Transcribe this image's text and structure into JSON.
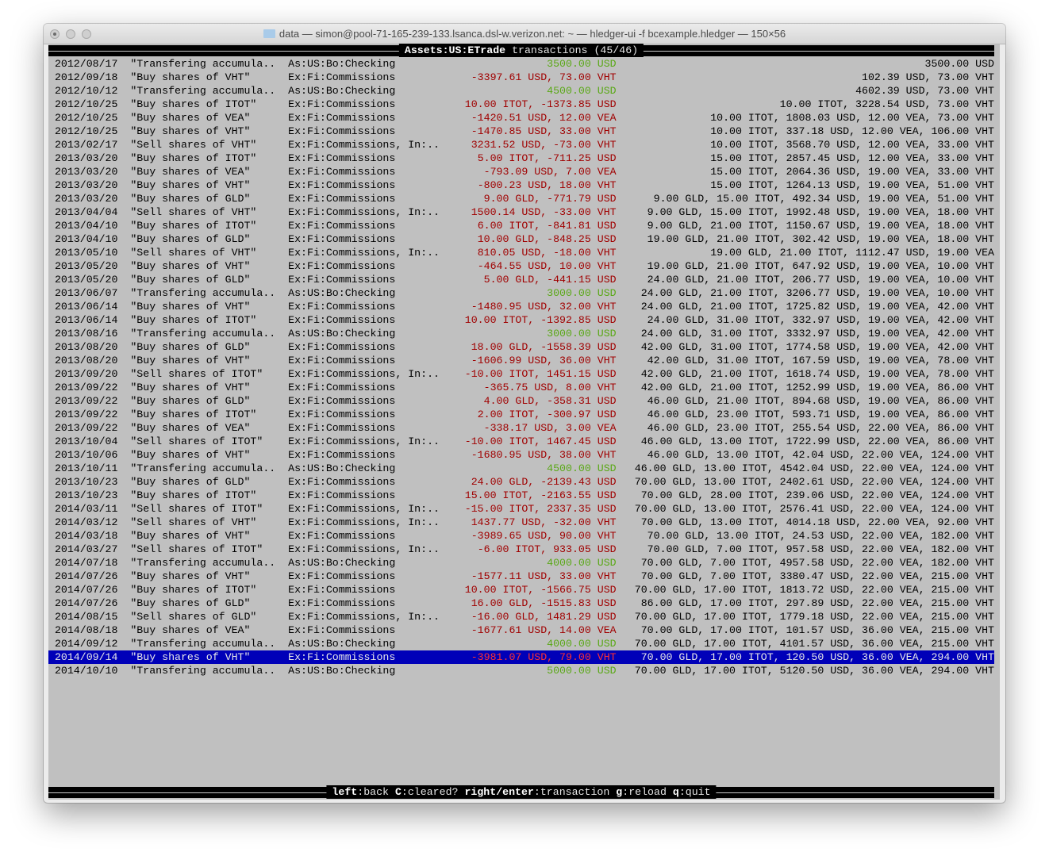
{
  "window": {
    "title": "data — simon@pool-71-165-239-133.lsanca.dsl-w.verizon.net: ~ — hledger-ui -f bcexample.hledger — 150×56"
  },
  "header": {
    "account": "Assets:US:ETrade",
    "label": "transactions",
    "position": "(45/46)"
  },
  "colors": {
    "terminal_bg": "#c0c0c0",
    "negative": "#a00000",
    "positive": "#5aa816",
    "selection": "#0000b8"
  },
  "selected_index": 44,
  "rows": [
    [
      "2012/08/17",
      "\"Transfering accumula..",
      "As:US:Bo:Checking",
      "3500.00 USD",
      "3500.00 USD",
      "pos"
    ],
    [
      "2012/09/18",
      "\"Buy shares of VHT\"",
      "Ex:Fi:Commissions",
      "-3397.61 USD, 73.00 VHT",
      "102.39 USD, 73.00 VHT",
      "neg"
    ],
    [
      "2012/10/12",
      "\"Transfering accumula..",
      "As:US:Bo:Checking",
      "4500.00 USD",
      "4602.39 USD, 73.00 VHT",
      "pos"
    ],
    [
      "2012/10/25",
      "\"Buy shares of ITOT\"",
      "Ex:Fi:Commissions",
      "10.00 ITOT, -1373.85 USD",
      "10.00 ITOT, 3228.54 USD, 73.00 VHT",
      "neg"
    ],
    [
      "2012/10/25",
      "\"Buy shares of VEA\"",
      "Ex:Fi:Commissions",
      "-1420.51 USD, 12.00 VEA",
      "10.00 ITOT, 1808.03 USD, 12.00 VEA, 73.00 VHT",
      "neg"
    ],
    [
      "2012/10/25",
      "\"Buy shares of VHT\"",
      "Ex:Fi:Commissions",
      "-1470.85 USD, 33.00 VHT",
      "10.00 ITOT, 337.18 USD, 12.00 VEA, 106.00 VHT",
      "neg"
    ],
    [
      "2013/02/17",
      "\"Sell shares of VHT\"",
      "Ex:Fi:Commissions, In:..",
      "3231.52 USD, -73.00 VHT",
      "10.00 ITOT, 3568.70 USD, 12.00 VEA, 33.00 VHT",
      "neg"
    ],
    [
      "2013/03/20",
      "\"Buy shares of ITOT\"",
      "Ex:Fi:Commissions",
      "5.00 ITOT, -711.25 USD",
      "15.00 ITOT, 2857.45 USD, 12.00 VEA, 33.00 VHT",
      "neg"
    ],
    [
      "2013/03/20",
      "\"Buy shares of VEA\"",
      "Ex:Fi:Commissions",
      "-793.09 USD, 7.00 VEA",
      "15.00 ITOT, 2064.36 USD, 19.00 VEA, 33.00 VHT",
      "neg"
    ],
    [
      "2013/03/20",
      "\"Buy shares of VHT\"",
      "Ex:Fi:Commissions",
      "-800.23 USD, 18.00 VHT",
      "15.00 ITOT, 1264.13 USD, 19.00 VEA, 51.00 VHT",
      "neg"
    ],
    [
      "2013/03/20",
      "\"Buy shares of GLD\"",
      "Ex:Fi:Commissions",
      "9.00 GLD, -771.79 USD",
      "9.00 GLD, 15.00 ITOT, 492.34 USD, 19.00 VEA, 51.00 VHT",
      "neg"
    ],
    [
      "2013/04/04",
      "\"Sell shares of VHT\"",
      "Ex:Fi:Commissions, In:..",
      "1500.14 USD, -33.00 VHT",
      "9.00 GLD, 15.00 ITOT, 1992.48 USD, 19.00 VEA, 18.00 VHT",
      "neg"
    ],
    [
      "2013/04/10",
      "\"Buy shares of ITOT\"",
      "Ex:Fi:Commissions",
      "6.00 ITOT, -841.81 USD",
      "9.00 GLD, 21.00 ITOT, 1150.67 USD, 19.00 VEA, 18.00 VHT",
      "neg"
    ],
    [
      "2013/04/10",
      "\"Buy shares of GLD\"",
      "Ex:Fi:Commissions",
      "10.00 GLD, -848.25 USD",
      "19.00 GLD, 21.00 ITOT, 302.42 USD, 19.00 VEA, 18.00 VHT",
      "neg"
    ],
    [
      "2013/05/10",
      "\"Sell shares of VHT\"",
      "Ex:Fi:Commissions, In:..",
      "810.05 USD, -18.00 VHT",
      "19.00 GLD, 21.00 ITOT, 1112.47 USD, 19.00 VEA",
      "neg"
    ],
    [
      "2013/05/20",
      "\"Buy shares of VHT\"",
      "Ex:Fi:Commissions",
      "-464.55 USD, 10.00 VHT",
      "19.00 GLD, 21.00 ITOT, 647.92 USD, 19.00 VEA, 10.00 VHT",
      "neg"
    ],
    [
      "2013/05/20",
      "\"Buy shares of GLD\"",
      "Ex:Fi:Commissions",
      "5.00 GLD, -441.15 USD",
      "24.00 GLD, 21.00 ITOT, 206.77 USD, 19.00 VEA, 10.00 VHT",
      "neg"
    ],
    [
      "2013/06/07",
      "\"Transfering accumula..",
      "As:US:Bo:Checking",
      "3000.00 USD",
      "24.00 GLD, 21.00 ITOT, 3206.77 USD, 19.00 VEA, 10.00 VHT",
      "pos"
    ],
    [
      "2013/06/14",
      "\"Buy shares of VHT\"",
      "Ex:Fi:Commissions",
      "-1480.95 USD, 32.00 VHT",
      "24.00 GLD, 21.00 ITOT, 1725.82 USD, 19.00 VEA, 42.00 VHT",
      "neg"
    ],
    [
      "2013/06/14",
      "\"Buy shares of ITOT\"",
      "Ex:Fi:Commissions",
      "10.00 ITOT, -1392.85 USD",
      "24.00 GLD, 31.00 ITOT, 332.97 USD, 19.00 VEA, 42.00 VHT",
      "neg"
    ],
    [
      "2013/08/16",
      "\"Transfering accumula..",
      "As:US:Bo:Checking",
      "3000.00 USD",
      "24.00 GLD, 31.00 ITOT, 3332.97 USD, 19.00 VEA, 42.00 VHT",
      "pos"
    ],
    [
      "2013/08/20",
      "\"Buy shares of GLD\"",
      "Ex:Fi:Commissions",
      "18.00 GLD, -1558.39 USD",
      "42.00 GLD, 31.00 ITOT, 1774.58 USD, 19.00 VEA, 42.00 VHT",
      "neg"
    ],
    [
      "2013/08/20",
      "\"Buy shares of VHT\"",
      "Ex:Fi:Commissions",
      "-1606.99 USD, 36.00 VHT",
      "42.00 GLD, 31.00 ITOT, 167.59 USD, 19.00 VEA, 78.00 VHT",
      "neg"
    ],
    [
      "2013/09/20",
      "\"Sell shares of ITOT\"",
      "Ex:Fi:Commissions, In:..",
      "-10.00 ITOT, 1451.15 USD",
      "42.00 GLD, 21.00 ITOT, 1618.74 USD, 19.00 VEA, 78.00 VHT",
      "neg"
    ],
    [
      "2013/09/22",
      "\"Buy shares of VHT\"",
      "Ex:Fi:Commissions",
      "-365.75 USD, 8.00 VHT",
      "42.00 GLD, 21.00 ITOT, 1252.99 USD, 19.00 VEA, 86.00 VHT",
      "neg"
    ],
    [
      "2013/09/22",
      "\"Buy shares of GLD\"",
      "Ex:Fi:Commissions",
      "4.00 GLD, -358.31 USD",
      "46.00 GLD, 21.00 ITOT, 894.68 USD, 19.00 VEA, 86.00 VHT",
      "neg"
    ],
    [
      "2013/09/22",
      "\"Buy shares of ITOT\"",
      "Ex:Fi:Commissions",
      "2.00 ITOT, -300.97 USD",
      "46.00 GLD, 23.00 ITOT, 593.71 USD, 19.00 VEA, 86.00 VHT",
      "neg"
    ],
    [
      "2013/09/22",
      "\"Buy shares of VEA\"",
      "Ex:Fi:Commissions",
      "-338.17 USD, 3.00 VEA",
      "46.00 GLD, 23.00 ITOT, 255.54 USD, 22.00 VEA, 86.00 VHT",
      "neg"
    ],
    [
      "2013/10/04",
      "\"Sell shares of ITOT\"",
      "Ex:Fi:Commissions, In:..",
      "-10.00 ITOT, 1467.45 USD",
      "46.00 GLD, 13.00 ITOT, 1722.99 USD, 22.00 VEA, 86.00 VHT",
      "neg"
    ],
    [
      "2013/10/06",
      "\"Buy shares of VHT\"",
      "Ex:Fi:Commissions",
      "-1680.95 USD, 38.00 VHT",
      "46.00 GLD, 13.00 ITOT, 42.04 USD, 22.00 VEA, 124.00 VHT",
      "neg"
    ],
    [
      "2013/10/11",
      "\"Transfering accumula..",
      "As:US:Bo:Checking",
      "4500.00 USD",
      "46.00 GLD, 13.00 ITOT, 4542.04 USD, 22.00 VEA, 124.00 VHT",
      "pos"
    ],
    [
      "2013/10/23",
      "\"Buy shares of GLD\"",
      "Ex:Fi:Commissions",
      "24.00 GLD, -2139.43 USD",
      "70.00 GLD, 13.00 ITOT, 2402.61 USD, 22.00 VEA, 124.00 VHT",
      "neg"
    ],
    [
      "2013/10/23",
      "\"Buy shares of ITOT\"",
      "Ex:Fi:Commissions",
      "15.00 ITOT, -2163.55 USD",
      "70.00 GLD, 28.00 ITOT, 239.06 USD, 22.00 VEA, 124.00 VHT",
      "neg"
    ],
    [
      "2014/03/11",
      "\"Sell shares of ITOT\"",
      "Ex:Fi:Commissions, In:..",
      "-15.00 ITOT, 2337.35 USD",
      "70.00 GLD, 13.00 ITOT, 2576.41 USD, 22.00 VEA, 124.00 VHT",
      "neg"
    ],
    [
      "2014/03/12",
      "\"Sell shares of VHT\"",
      "Ex:Fi:Commissions, In:..",
      "1437.77 USD, -32.00 VHT",
      "70.00 GLD, 13.00 ITOT, 4014.18 USD, 22.00 VEA, 92.00 VHT",
      "neg"
    ],
    [
      "2014/03/18",
      "\"Buy shares of VHT\"",
      "Ex:Fi:Commissions",
      "-3989.65 USD, 90.00 VHT",
      "70.00 GLD, 13.00 ITOT, 24.53 USD, 22.00 VEA, 182.00 VHT",
      "neg"
    ],
    [
      "2014/03/27",
      "\"Sell shares of ITOT\"",
      "Ex:Fi:Commissions, In:..",
      "-6.00 ITOT, 933.05 USD",
      "70.00 GLD, 7.00 ITOT, 957.58 USD, 22.00 VEA, 182.00 VHT",
      "neg"
    ],
    [
      "2014/07/18",
      "\"Transfering accumula..",
      "As:US:Bo:Checking",
      "4000.00 USD",
      "70.00 GLD, 7.00 ITOT, 4957.58 USD, 22.00 VEA, 182.00 VHT",
      "pos"
    ],
    [
      "2014/07/26",
      "\"Buy shares of VHT\"",
      "Ex:Fi:Commissions",
      "-1577.11 USD, 33.00 VHT",
      "70.00 GLD, 7.00 ITOT, 3380.47 USD, 22.00 VEA, 215.00 VHT",
      "neg"
    ],
    [
      "2014/07/26",
      "\"Buy shares of ITOT\"",
      "Ex:Fi:Commissions",
      "10.00 ITOT, -1566.75 USD",
      "70.00 GLD, 17.00 ITOT, 1813.72 USD, 22.00 VEA, 215.00 VHT",
      "neg"
    ],
    [
      "2014/07/26",
      "\"Buy shares of GLD\"",
      "Ex:Fi:Commissions",
      "16.00 GLD, -1515.83 USD",
      "86.00 GLD, 17.00 ITOT, 297.89 USD, 22.00 VEA, 215.00 VHT",
      "neg"
    ],
    [
      "2014/08/15",
      "\"Sell shares of GLD\"",
      "Ex:Fi:Commissions, In:..",
      "-16.00 GLD, 1481.29 USD",
      "70.00 GLD, 17.00 ITOT, 1779.18 USD, 22.00 VEA, 215.00 VHT",
      "neg"
    ],
    [
      "2014/08/18",
      "\"Buy shares of VEA\"",
      "Ex:Fi:Commissions",
      "-1677.61 USD, 14.00 VEA",
      "70.00 GLD, 17.00 ITOT, 101.57 USD, 36.00 VEA, 215.00 VHT",
      "neg"
    ],
    [
      "2014/09/12",
      "\"Transfering accumula..",
      "As:US:Bo:Checking",
      "4000.00 USD",
      "70.00 GLD, 17.00 ITOT, 4101.57 USD, 36.00 VEA, 215.00 VHT",
      "pos"
    ],
    [
      "2014/09/14",
      "\"Buy shares of VHT\"",
      "Ex:Fi:Commissions",
      "-3981.07 USD, 79.00 VHT",
      "70.00 GLD, 17.00 ITOT, 120.50 USD, 36.00 VEA, 294.00 VHT",
      "neg"
    ],
    [
      "2014/10/10",
      "\"Transfering accumula..",
      "As:US:Bo:Checking",
      "5000.00 USD",
      "70.00 GLD, 17.00 ITOT, 5120.50 USD, 36.00 VEA, 294.00 VHT",
      "pos"
    ]
  ],
  "footer": {
    "keys": [
      {
        "key": "left",
        "label": "back"
      },
      {
        "key": "C",
        "label": "cleared?"
      },
      {
        "key": "right/enter",
        "label": "transaction"
      },
      {
        "key": "g",
        "label": "reload"
      },
      {
        "key": "q",
        "label": "quit"
      }
    ]
  }
}
